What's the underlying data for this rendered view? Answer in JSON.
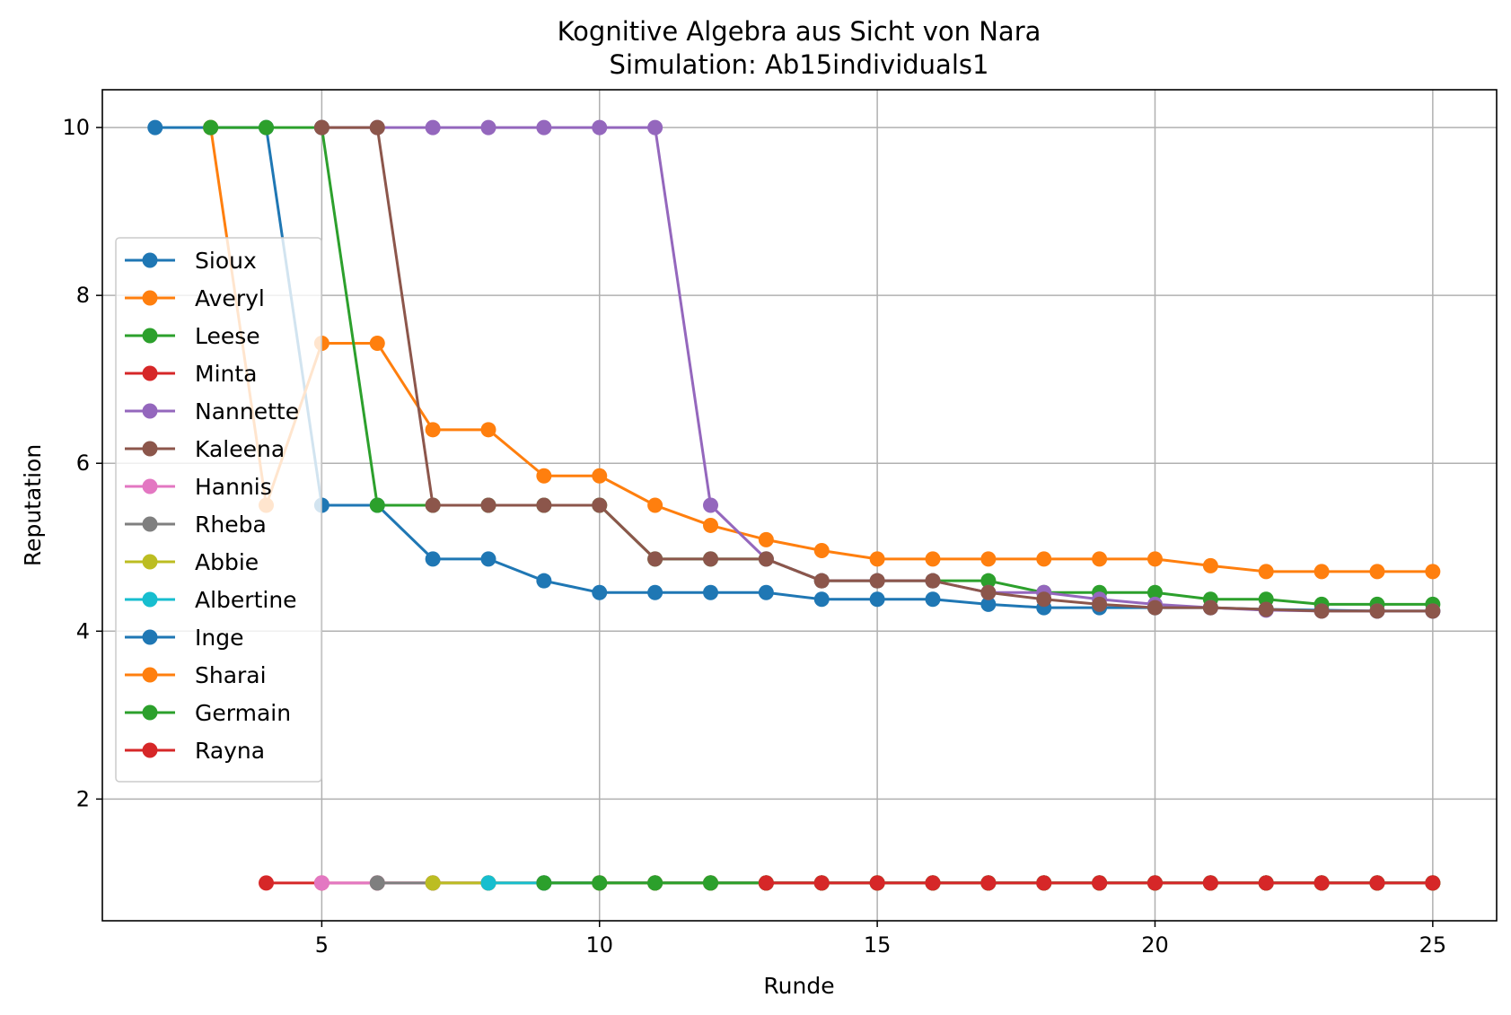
{
  "chart_data": {
    "type": "line",
    "title": "Kognitive Algebra aus Sicht von Nara",
    "subtitle": "Simulation: Ab15individuals1",
    "xlabel": "Runde",
    "ylabel": "Reputation",
    "xlim": [
      1.05,
      26.15
    ],
    "ylim": [
      0.55,
      10.45
    ],
    "xticks": [
      5,
      10,
      15,
      20,
      25
    ],
    "yticks": [
      2,
      4,
      6,
      8,
      10
    ],
    "grid": true,
    "legend_position": "center-left",
    "series": [
      {
        "name": "Sioux",
        "color": "#1f77b4",
        "x": [
          2,
          3,
          4,
          5,
          6,
          7,
          8,
          9,
          10,
          11,
          12,
          13,
          14,
          15,
          16,
          17,
          18,
          19,
          20,
          21,
          22,
          23,
          24,
          25
        ],
        "y": [
          10,
          10,
          10,
          5.5,
          5.5,
          4.86,
          4.86,
          4.6,
          4.46,
          4.46,
          4.46,
          4.46,
          4.38,
          4.38,
          4.38,
          4.32,
          4.28,
          4.28,
          4.28,
          4.28,
          4.26,
          4.25,
          4.24,
          4.24
        ]
      },
      {
        "name": "Averyl",
        "color": "#ff7f0e",
        "x": [
          3,
          4,
          5,
          6,
          7,
          8,
          9,
          10,
          11,
          12,
          13,
          14,
          15,
          16,
          17,
          18,
          19,
          20,
          21,
          22,
          23,
          24,
          25
        ],
        "y": [
          10,
          5.5,
          7.43,
          7.43,
          6.4,
          6.4,
          5.85,
          5.85,
          5.5,
          5.26,
          5.09,
          4.96,
          4.86,
          4.86,
          4.86,
          4.86,
          4.86,
          4.86,
          4.78,
          4.71,
          4.71,
          4.71,
          4.71
        ]
      },
      {
        "name": "Leese",
        "color": "#2ca02c",
        "x": [
          3,
          4,
          5,
          6,
          7,
          8,
          9,
          10,
          11,
          12,
          13,
          14,
          15,
          16,
          17,
          18,
          19,
          20,
          21,
          22,
          23,
          24,
          25
        ],
        "y": [
          10,
          10,
          10,
          5.5,
          5.5,
          5.5,
          5.5,
          5.5,
          4.86,
          4.86,
          4.86,
          4.6,
          4.6,
          4.6,
          4.6,
          4.46,
          4.46,
          4.46,
          4.38,
          4.38,
          4.32,
          4.32,
          4.32
        ]
      },
      {
        "name": "Minta",
        "color": "#d62728",
        "x": [
          4,
          5,
          6,
          7,
          8,
          9,
          10,
          11,
          12,
          13,
          14,
          15,
          16,
          17,
          18,
          19,
          20,
          21,
          22,
          23,
          24,
          25
        ],
        "y": [
          1,
          1,
          1,
          1,
          1,
          1,
          1,
          1,
          1,
          1,
          1,
          1,
          1,
          1,
          1,
          1,
          1,
          1,
          1,
          1,
          1,
          1
        ]
      },
      {
        "name": "Nannette",
        "color": "#9467bd",
        "x": [
          5,
          6,
          7,
          8,
          9,
          10,
          11,
          12,
          13,
          14,
          15,
          16,
          17,
          18,
          19,
          20,
          21,
          22,
          23,
          24,
          25
        ],
        "y": [
          10,
          10,
          10,
          10,
          10,
          10,
          10,
          5.5,
          4.86,
          4.6,
          4.6,
          4.6,
          4.46,
          4.46,
          4.38,
          4.32,
          4.28,
          4.25,
          4.24,
          4.24,
          4.24
        ]
      },
      {
        "name": "Kaleena",
        "color": "#8c564b",
        "x": [
          5,
          6,
          7,
          8,
          9,
          10,
          11,
          12,
          13,
          14,
          15,
          16,
          17,
          18,
          19,
          20,
          21,
          22,
          23,
          24,
          25
        ],
        "y": [
          10,
          10,
          5.5,
          5.5,
          5.5,
          5.5,
          4.86,
          4.86,
          4.86,
          4.6,
          4.6,
          4.6,
          4.46,
          4.38,
          4.32,
          4.28,
          4.28,
          4.26,
          4.24,
          4.24,
          4.24
        ]
      },
      {
        "name": "Hannis",
        "color": "#e377c2",
        "x": [
          5,
          6,
          7,
          8,
          9,
          10,
          11,
          12,
          13,
          14,
          15,
          16,
          17,
          18,
          19,
          20,
          21,
          22,
          23,
          24,
          25
        ],
        "y": [
          1,
          1,
          1,
          1,
          1,
          1,
          1,
          1,
          1,
          1,
          1,
          1,
          1,
          1,
          1,
          1,
          1,
          1,
          1,
          1,
          1
        ]
      },
      {
        "name": "Rheba",
        "color": "#7f7f7f",
        "x": [
          6,
          7,
          8,
          9,
          10,
          11,
          12,
          13,
          14,
          15,
          16,
          17,
          18,
          19,
          20,
          21,
          22,
          23,
          24,
          25
        ],
        "y": [
          1,
          1,
          1,
          1,
          1,
          1,
          1,
          1,
          1,
          1,
          1,
          1,
          1,
          1,
          1,
          1,
          1,
          1,
          1,
          1
        ]
      },
      {
        "name": "Abbie",
        "color": "#bcbd22",
        "x": [
          7,
          8,
          9,
          10,
          11,
          12,
          13,
          14,
          15,
          16,
          17,
          18,
          19,
          20,
          21,
          22,
          23,
          24,
          25
        ],
        "y": [
          1,
          1,
          1,
          1,
          1,
          1,
          1,
          1,
          1,
          1,
          1,
          1,
          1,
          1,
          1,
          1,
          1,
          1,
          1
        ]
      },
      {
        "name": "Albertine",
        "color": "#17becf",
        "x": [
          8,
          9,
          10,
          11,
          12,
          13,
          14,
          15,
          16,
          17,
          18,
          19,
          20,
          21,
          22,
          23,
          24,
          25
        ],
        "y": [
          1,
          1,
          1,
          1,
          1,
          1,
          1,
          1,
          1,
          1,
          1,
          1,
          1,
          1,
          1,
          1,
          1,
          1
        ]
      },
      {
        "name": "Inge",
        "color": "#1f77b4",
        "x": [
          9,
          10,
          11,
          12,
          13,
          14,
          15,
          16,
          17,
          18,
          19,
          20,
          21,
          22,
          23,
          24,
          25
        ],
        "y": [
          1,
          1,
          1,
          1,
          1,
          1,
          1,
          1,
          1,
          1,
          1,
          1,
          1,
          1,
          1,
          1,
          1
        ]
      },
      {
        "name": "Sharai",
        "color": "#ff7f0e",
        "x": [
          10,
          11,
          12,
          13,
          14,
          15,
          16,
          17,
          18,
          19,
          20,
          21,
          22,
          23,
          24,
          25
        ],
        "y": [
          1,
          1,
          1,
          1,
          1,
          1,
          1,
          1,
          1,
          1,
          1,
          1,
          1,
          1,
          1,
          1
        ]
      },
      {
        "name": "Germain",
        "color": "#2ca02c",
        "x": [
          9,
          10,
          11,
          12,
          13,
          14,
          15,
          16,
          17,
          18,
          19,
          20,
          21,
          22,
          23,
          24,
          25
        ],
        "y": [
          1,
          1,
          1,
          1,
          1,
          1,
          1,
          1,
          1,
          1,
          1,
          1,
          1,
          1,
          1,
          1,
          1
        ]
      },
      {
        "name": "Rayna",
        "color": "#d62728",
        "x": [
          13,
          14,
          15,
          16,
          17,
          18,
          19,
          20,
          21,
          22,
          23,
          24,
          25
        ],
        "y": [
          1,
          1,
          1,
          1,
          1,
          1,
          1,
          1,
          1,
          1,
          1,
          1,
          1
        ]
      }
    ]
  }
}
